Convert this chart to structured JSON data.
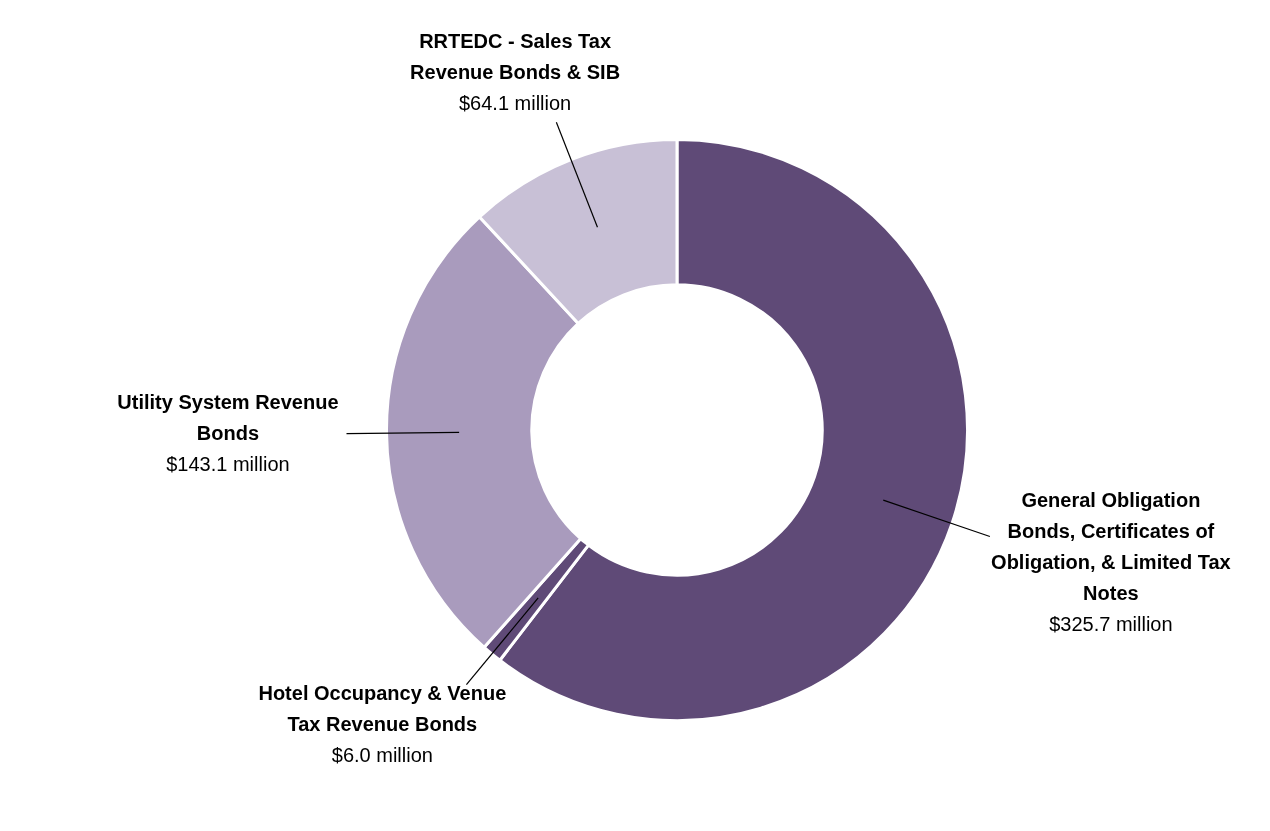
{
  "chart_data": {
    "type": "donut",
    "categories": [
      "General Obligation Bonds, Certificates of Obligation, & Limited Tax Notes",
      "Hotel Occupancy & Venue Tax Revenue Bonds",
      "Utility System Revenue Bonds",
      "RRTEDC - Sales Tax Revenue Bonds & SIB"
    ],
    "values": [
      325.7,
      6.0,
      143.1,
      64.1
    ],
    "colors": [
      "#5f4a77",
      "#5f4a77",
      "#a99bbd",
      "#c8c0d6"
    ],
    "value_labels": [
      "$325.7 million",
      "$6.0 million",
      "$143.1 million",
      "$64.1 million"
    ]
  }
}
